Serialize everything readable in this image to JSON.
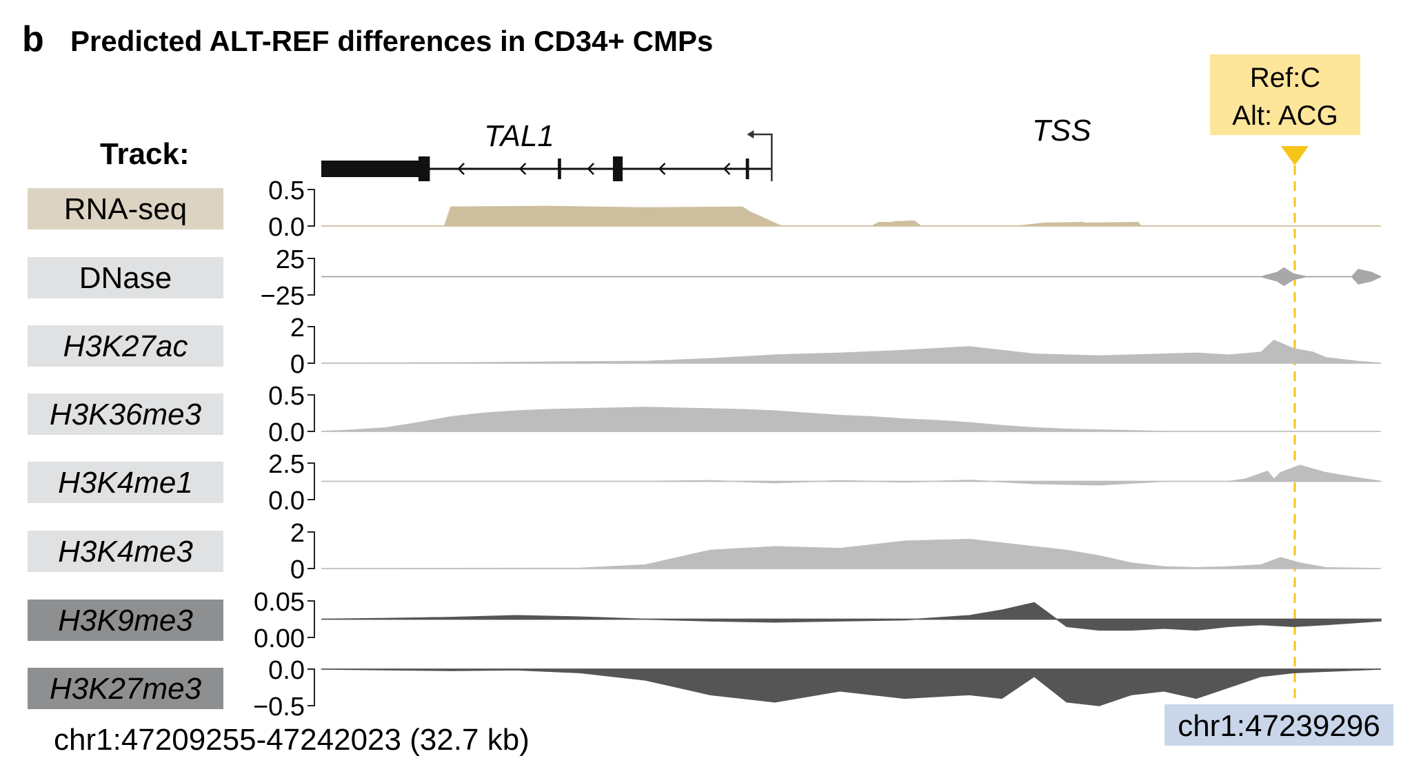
{
  "panel_letter": "b",
  "title": "Predicted ALT-REF differences in CD34+ CMPs",
  "track_heading": "Track:",
  "region_label": "chr1:47209255-47242023 (32.7 kb)",
  "variant": {
    "ref_label": "Ref:C",
    "alt_label": "Alt: ACG",
    "position_label": "chr1:47239296",
    "position": 47239296,
    "box_color": "#fde59a",
    "line_color": "#f5c518",
    "position_box_color": "#c9d6ea"
  },
  "gene": {
    "name": "TAL1",
    "tss_label": "TSS",
    "strand": "-",
    "exons_kb": [
      [
        0,
        3.0
      ],
      [
        3.0,
        3.35
      ],
      [
        7.3,
        7.4
      ],
      [
        9.0,
        9.3
      ],
      [
        13.1,
        13.2
      ]
    ],
    "tss_kb": 13.9
  },
  "chart_data": {
    "type": "area",
    "region": {
      "chrom": "chr1",
      "start": 47209255,
      "end": 47242023,
      "length_kb": 32.7
    },
    "x_unit": "kb from region start",
    "tracks": [
      {
        "name": "RNA-seq",
        "italic": false,
        "label_bg": "#dcd3c2",
        "color": "#cdbf9e",
        "ticks": [
          "0.5",
          "0.0"
        ],
        "ylim": [
          0,
          0.5
        ],
        "x": [
          0,
          3.8,
          4.0,
          7.0,
          10.0,
          13.0,
          13.2,
          14.2,
          14.4,
          17.0,
          17.2,
          17.6,
          17.7,
          18.3,
          18.5,
          21.5,
          22.3,
          23.5,
          23.6,
          25.2,
          25.3,
          32.7
        ],
        "y": [
          0,
          0,
          0.26,
          0.27,
          0.25,
          0.26,
          0.2,
          0,
          0,
          0,
          0.05,
          0.05,
          0.06,
          0.07,
          0,
          0,
          0.04,
          0.05,
          0.04,
          0.05,
          0,
          0
        ]
      },
      {
        "name": "DNase",
        "italic": false,
        "label_bg": "#e0e1e2",
        "color": "#a8a8a8",
        "ticks": [
          "25",
          "−25"
        ],
        "ylim": [
          -25,
          25
        ],
        "x": [
          0,
          29.0,
          29.5,
          29.7,
          30.0,
          30.4,
          31.8,
          32.0,
          32.4,
          32.7
        ],
        "y": [
          0,
          0,
          6,
          12,
          4,
          0,
          0,
          10,
          6,
          0
        ]
      },
      {
        "name": "H3K27ac",
        "italic": true,
        "label_bg": "#e0e1e2",
        "color": "#bdbdbd",
        "ticks": [
          "2",
          "0"
        ],
        "ylim": [
          0,
          2
        ],
        "x": [
          0,
          4,
          6,
          8,
          10,
          12,
          14,
          16,
          18,
          20,
          22,
          24,
          26,
          27,
          28,
          29,
          29.4,
          30.0,
          30.6,
          31,
          32,
          32.7
        ],
        "y": [
          0,
          0.02,
          0.05,
          0.08,
          0.1,
          0.25,
          0.45,
          0.55,
          0.7,
          0.9,
          0.5,
          0.4,
          0.5,
          0.55,
          0.45,
          0.6,
          1.25,
          0.8,
          0.6,
          0.3,
          0.1,
          0
        ]
      },
      {
        "name": "H3K36me3",
        "italic": true,
        "label_bg": "#e0e1e2",
        "color": "#bdbdbd",
        "ticks": [
          "0.5",
          "0.0"
        ],
        "ylim": [
          0,
          0.5
        ],
        "x": [
          0,
          1,
          2,
          3,
          4,
          5,
          6,
          7,
          8,
          9,
          10,
          11,
          12,
          13,
          14,
          15,
          16,
          17,
          18,
          19,
          20,
          21,
          22,
          23,
          24,
          25,
          26,
          32.7
        ],
        "y": [
          0,
          0.02,
          0.05,
          0.12,
          0.2,
          0.25,
          0.28,
          0.3,
          0.31,
          0.32,
          0.33,
          0.32,
          0.31,
          0.3,
          0.28,
          0.25,
          0.22,
          0.2,
          0.17,
          0.15,
          0.12,
          0.08,
          0.05,
          0.03,
          0.02,
          0.01,
          0,
          0
        ]
      },
      {
        "name": "H3K4me1",
        "italic": true,
        "label_bg": "#e0e1e2",
        "color": "#bdbdbd",
        "ticks": [
          "2.5",
          "0.0"
        ],
        "ylim": [
          -2.5,
          2.5
        ],
        "x": [
          0,
          10,
          12,
          14,
          16,
          18,
          20,
          22,
          24,
          26,
          28,
          28.5,
          29.2,
          29.4,
          29.6,
          30.2,
          31.0,
          31.8,
          32.7
        ],
        "y": [
          0,
          0,
          0.1,
          -0.2,
          0.1,
          -0.1,
          0.15,
          -0.3,
          -0.5,
          0,
          0,
          0.3,
          1.4,
          0.3,
          1.2,
          2.2,
          1.2,
          0.6,
          0
        ]
      },
      {
        "name": "H3K4me3",
        "italic": true,
        "label_bg": "#e0e1e2",
        "color": "#bdbdbd",
        "ticks": [
          "2",
          "0"
        ],
        "ylim": [
          0,
          2
        ],
        "x": [
          0,
          8,
          10,
          12,
          14,
          16,
          18,
          20,
          22,
          23,
          24,
          25,
          26,
          27,
          28,
          29,
          29.6,
          30.2,
          31,
          32.7
        ],
        "y": [
          0,
          0.02,
          0.2,
          1.0,
          1.2,
          1.1,
          1.5,
          1.6,
          1.2,
          1.0,
          0.7,
          0.3,
          0.1,
          0.05,
          0.1,
          0.2,
          0.6,
          0.3,
          0.05,
          0
        ]
      },
      {
        "name": "H3K9me3",
        "italic": true,
        "label_bg": "#8e8f91",
        "color": "#555555",
        "ticks": [
          "0.05",
          "0.00"
        ],
        "ylim": [
          -0.05,
          0.05
        ],
        "x": [
          0,
          2,
          4,
          6,
          8,
          10,
          12,
          14,
          16,
          18,
          20,
          21,
          22,
          23,
          24,
          25,
          26,
          27,
          28,
          29,
          30,
          31,
          32.7
        ],
        "y": [
          0,
          0.002,
          0.005,
          0.01,
          0.006,
          0,
          -0.005,
          -0.008,
          -0.005,
          -0.002,
          0.01,
          0.025,
          0.045,
          -0.02,
          -0.03,
          -0.03,
          -0.025,
          -0.03,
          -0.02,
          -0.015,
          -0.02,
          -0.015,
          -0.005
        ]
      },
      {
        "name": "H3K27me3",
        "italic": true,
        "label_bg": "#8e8f91",
        "color": "#555555",
        "ticks": [
          "0.0",
          "−0.5"
        ],
        "ylim": [
          -0.5,
          0.0
        ],
        "x": [
          0,
          4,
          6,
          8,
          10,
          12,
          14,
          16,
          18,
          20,
          21,
          22,
          23,
          24,
          25,
          26,
          27,
          28,
          29,
          30,
          31,
          32.7
        ],
        "y": [
          0,
          -0.02,
          -0.01,
          -0.05,
          -0.15,
          -0.35,
          -0.45,
          -0.3,
          -0.4,
          -0.35,
          -0.4,
          -0.1,
          -0.45,
          -0.5,
          -0.35,
          -0.3,
          -0.4,
          -0.25,
          -0.1,
          -0.05,
          -0.03,
          0
        ]
      }
    ]
  }
}
